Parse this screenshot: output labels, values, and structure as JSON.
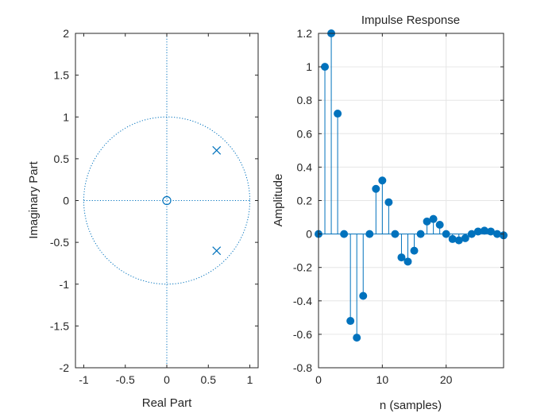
{
  "chart_data": [
    {
      "type": "scatter",
      "subtype": "pole-zero",
      "title": "",
      "xlabel": "Real Part",
      "ylabel": "Imaginary Part",
      "xlim": [
        -1.1,
        1.1
      ],
      "ylim": [
        -2,
        2
      ],
      "xticks": [
        -1,
        -0.5,
        0,
        0.5,
        1
      ],
      "xtick_labels": [
        "-1",
        "-0.5",
        "0",
        "0.5",
        "1"
      ],
      "yticks": [
        2,
        1.5,
        1,
        0.5,
        0,
        -0.5,
        -1,
        -1.5,
        -2
      ],
      "ytick_labels": [
        "2",
        "1.5",
        "1",
        "0.5",
        "0",
        "-0.5",
        "-1",
        "-1.5",
        "-2"
      ],
      "grid": false,
      "unit_circle": true,
      "zeros": [
        {
          "re": 0,
          "im": 0
        }
      ],
      "poles": [
        {
          "re": 0.6,
          "im": 0.6
        },
        {
          "re": 0.6,
          "im": -0.6
        }
      ],
      "color": "#0072bd"
    },
    {
      "type": "stem",
      "title": "Impulse Response",
      "xlabel": "n (samples)",
      "ylabel": "Amplitude",
      "xlim": [
        0,
        29
      ],
      "ylim": [
        -0.8,
        1.2
      ],
      "xticks": [
        0,
        10,
        20
      ],
      "xtick_labels": [
        "0",
        "10",
        "20"
      ],
      "yticks": [
        1.2,
        1,
        0.8,
        0.6,
        0.4,
        0.2,
        0,
        -0.2,
        -0.4,
        -0.6,
        -0.8
      ],
      "ytick_labels": [
        "1.2",
        "1",
        "0.8",
        "0.6",
        "0.4",
        "0.2",
        "0",
        "-0.2",
        "-0.4",
        "-0.6",
        "-0.8"
      ],
      "grid": true,
      "color": "#0072bd",
      "x": [
        0,
        1,
        2,
        3,
        4,
        5,
        6,
        7,
        8,
        9,
        10,
        11,
        12,
        13,
        14,
        15,
        16,
        17,
        18,
        19,
        20,
        21,
        22,
        23,
        24,
        25,
        26,
        27,
        28,
        29
      ],
      "y": [
        0,
        1.0,
        1.2,
        0.72,
        0,
        -0.52,
        -0.62,
        -0.37,
        0,
        0.27,
        0.32,
        0.19,
        0,
        -0.14,
        -0.165,
        -0.1,
        0,
        0.075,
        0.09,
        0.055,
        0,
        -0.03,
        -0.038,
        -0.025,
        0,
        0.015,
        0.02,
        0.015,
        0,
        -0.008
      ]
    }
  ]
}
